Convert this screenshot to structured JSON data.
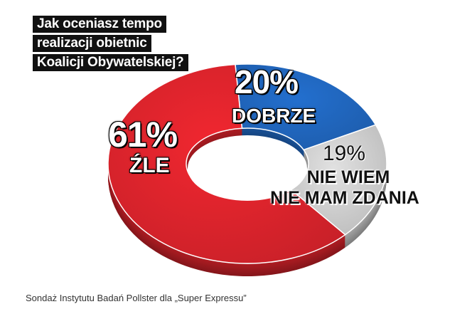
{
  "title_lines": [
    "Jak oceniasz tempo",
    "realizacji obietnic",
    "Koalicji Obywatelskiej?"
  ],
  "source": "Sondaż Instytutu Badań Pollster dla „Super Expressu”",
  "chart_data": {
    "type": "pie",
    "style": "donut",
    "title": "Jak oceniasz tempo realizacji obietnic Koalicji Obywatelskiej?",
    "slices": [
      {
        "label": "DOBRZE",
        "value": 20,
        "value_text": "20%",
        "color": "#1f63b8"
      },
      {
        "label": "NIE WIEM NIE MAM ZDANIA",
        "label_lines": [
          "NIE WIEM",
          "NIE MAM ZDANIA"
        ],
        "value": 19,
        "value_text": "19%",
        "color": "#c9c9c9"
      },
      {
        "label": "ŹLE",
        "value": 61,
        "value_text": "61%",
        "color": "#d7232b"
      }
    ]
  }
}
